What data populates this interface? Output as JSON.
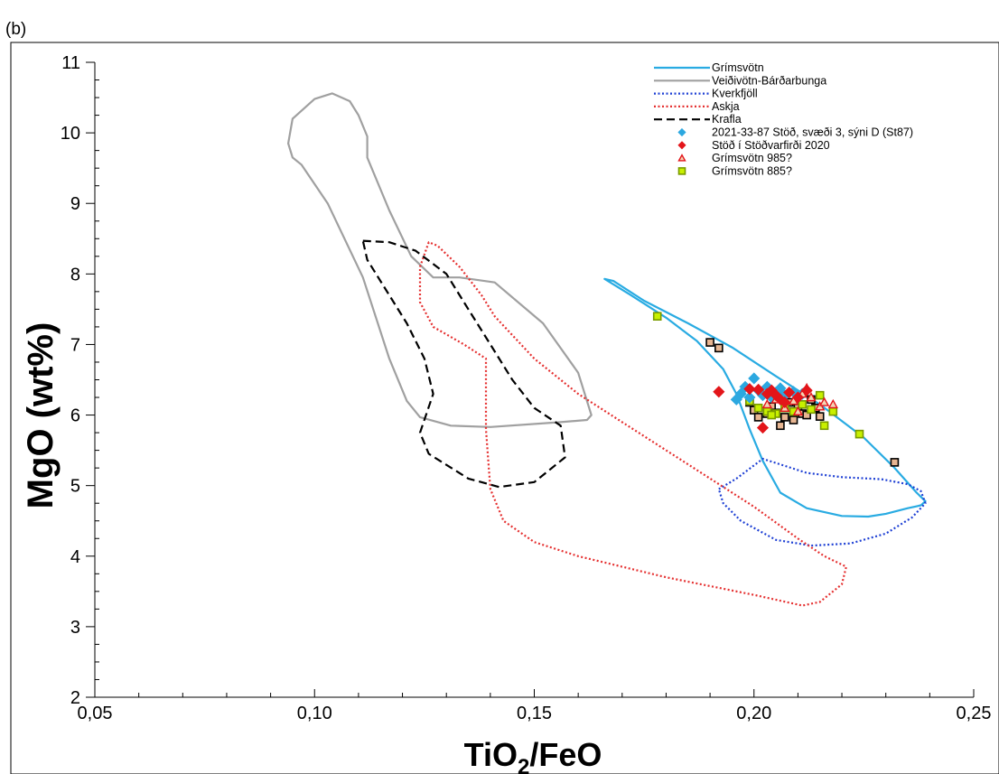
{
  "panel_label": "(b)",
  "chart_data": {
    "type": "scatter",
    "xlabel_main": "TiO",
    "xlabel_sub": "2",
    "xlabel_tail": "/FeO",
    "ylabel": "MgO (wt%)",
    "xlim": [
      0.05,
      0.25
    ],
    "ylim": [
      2,
      11
    ],
    "x_ticks": [
      {
        "value": 0.05,
        "label": "0,05"
      },
      {
        "value": 0.1,
        "label": "0,10"
      },
      {
        "value": 0.15,
        "label": "0,15"
      },
      {
        "value": 0.2,
        "label": "0,20"
      },
      {
        "value": 0.25,
        "label": "0,25"
      }
    ],
    "y_ticks": [
      {
        "value": 2,
        "label": "2"
      },
      {
        "value": 3,
        "label": "3"
      },
      {
        "value": 4,
        "label": "4"
      },
      {
        "value": 5,
        "label": "5"
      },
      {
        "value": 6,
        "label": "6"
      },
      {
        "value": 7,
        "label": "7"
      },
      {
        "value": 8,
        "label": "8"
      },
      {
        "value": 9,
        "label": "9"
      },
      {
        "value": 10,
        "label": "10"
      },
      {
        "value": 11,
        "label": "11"
      }
    ],
    "grid": false,
    "legend_position": "top-right",
    "fields": [
      {
        "name": "Grímsvötn",
        "color": "#29abe2",
        "style": "solid",
        "points": [
          [
            0.166,
            7.93
          ],
          [
            0.168,
            7.9
          ],
          [
            0.175,
            7.62
          ],
          [
            0.185,
            7.3
          ],
          [
            0.195,
            6.96
          ],
          [
            0.205,
            6.55
          ],
          [
            0.215,
            6.15
          ],
          [
            0.225,
            5.68
          ],
          [
            0.232,
            5.25
          ],
          [
            0.237,
            4.9
          ],
          [
            0.239,
            4.78
          ],
          [
            0.238,
            4.72
          ],
          [
            0.235,
            4.68
          ],
          [
            0.23,
            4.6
          ],
          [
            0.226,
            4.56
          ],
          [
            0.22,
            4.57
          ],
          [
            0.212,
            4.68
          ],
          [
            0.206,
            4.9
          ],
          [
            0.202,
            5.35
          ],
          [
            0.199,
            5.8
          ],
          [
            0.196,
            6.3
          ],
          [
            0.193,
            6.65
          ],
          [
            0.187,
            7.05
          ],
          [
            0.18,
            7.38
          ],
          [
            0.172,
            7.7
          ],
          [
            0.166,
            7.93
          ]
        ]
      },
      {
        "name": "Veiðivötn-Bárðarbunga",
        "color": "#a0a0a0",
        "style": "solid",
        "points": [
          [
            0.095,
            10.2
          ],
          [
            0.1,
            10.48
          ],
          [
            0.104,
            10.56
          ],
          [
            0.108,
            10.45
          ],
          [
            0.11,
            10.25
          ],
          [
            0.112,
            9.95
          ],
          [
            0.112,
            9.65
          ],
          [
            0.117,
            8.9
          ],
          [
            0.122,
            8.25
          ],
          [
            0.127,
            7.95
          ],
          [
            0.133,
            7.95
          ],
          [
            0.141,
            7.88
          ],
          [
            0.152,
            7.3
          ],
          [
            0.16,
            6.6
          ],
          [
            0.163,
            6.0
          ],
          [
            0.162,
            5.93
          ],
          [
            0.156,
            5.9
          ],
          [
            0.14,
            5.83
          ],
          [
            0.131,
            5.85
          ],
          [
            0.124,
            5.97
          ],
          [
            0.121,
            6.2
          ],
          [
            0.117,
            6.8
          ],
          [
            0.111,
            7.95
          ],
          [
            0.103,
            9.0
          ],
          [
            0.097,
            9.55
          ],
          [
            0.095,
            9.65
          ],
          [
            0.094,
            9.85
          ],
          [
            0.095,
            10.2
          ]
        ]
      },
      {
        "name": "Kverkfjöll",
        "color": "#1d3fd4",
        "style": "dotted",
        "points": [
          [
            0.192,
            4.95
          ],
          [
            0.196,
            5.1
          ],
          [
            0.202,
            5.38
          ],
          [
            0.206,
            5.3
          ],
          [
            0.212,
            5.18
          ],
          [
            0.22,
            5.12
          ],
          [
            0.229,
            5.09
          ],
          [
            0.235,
            5.02
          ],
          [
            0.238,
            4.92
          ],
          [
            0.239,
            4.75
          ],
          [
            0.236,
            4.55
          ],
          [
            0.23,
            4.32
          ],
          [
            0.222,
            4.18
          ],
          [
            0.213,
            4.15
          ],
          [
            0.205,
            4.23
          ],
          [
            0.197,
            4.5
          ],
          [
            0.193,
            4.75
          ],
          [
            0.192,
            4.95
          ]
        ]
      },
      {
        "name": "Askja",
        "color": "#e53030",
        "style": "dotted",
        "points": [
          [
            0.124,
            8.1
          ],
          [
            0.126,
            8.45
          ],
          [
            0.128,
            8.4
          ],
          [
            0.133,
            8.1
          ],
          [
            0.138,
            7.7
          ],
          [
            0.141,
            7.4
          ],
          [
            0.15,
            6.8
          ],
          [
            0.16,
            6.3
          ],
          [
            0.17,
            5.9
          ],
          [
            0.185,
            5.3
          ],
          [
            0.2,
            4.7
          ],
          [
            0.21,
            4.25
          ],
          [
            0.216,
            4.0
          ],
          [
            0.221,
            3.85
          ],
          [
            0.22,
            3.6
          ],
          [
            0.215,
            3.35
          ],
          [
            0.211,
            3.3
          ],
          [
            0.2,
            3.45
          ],
          [
            0.18,
            3.7
          ],
          [
            0.16,
            4.0
          ],
          [
            0.15,
            4.2
          ],
          [
            0.143,
            4.5
          ],
          [
            0.14,
            4.95
          ],
          [
            0.139,
            5.8
          ],
          [
            0.139,
            6.8
          ],
          [
            0.134,
            7.0
          ],
          [
            0.127,
            7.25
          ],
          [
            0.124,
            7.6
          ],
          [
            0.124,
            8.1
          ]
        ]
      },
      {
        "name": "Krafla",
        "color": "#000000",
        "style": "dashed",
        "points": [
          [
            0.111,
            8.47
          ],
          [
            0.117,
            8.45
          ],
          [
            0.123,
            8.33
          ],
          [
            0.13,
            8.0
          ],
          [
            0.135,
            7.5
          ],
          [
            0.14,
            7.0
          ],
          [
            0.145,
            6.5
          ],
          [
            0.15,
            6.1
          ],
          [
            0.156,
            5.85
          ],
          [
            0.157,
            5.4
          ],
          [
            0.15,
            5.05
          ],
          [
            0.142,
            4.98
          ],
          [
            0.135,
            5.1
          ],
          [
            0.126,
            5.45
          ],
          [
            0.124,
            5.75
          ],
          [
            0.127,
            6.3
          ],
          [
            0.125,
            6.8
          ],
          [
            0.121,
            7.3
          ],
          [
            0.116,
            7.8
          ],
          [
            0.112,
            8.2
          ],
          [
            0.111,
            8.47
          ]
        ]
      }
    ],
    "series": [
      {
        "name": "2021-33-87 Stöð, svæði 3, sýni D (St87)",
        "marker": "diamond",
        "color": "#2ca8e0",
        "points": [
          [
            0.2,
            6.52
          ],
          [
            0.197,
            6.3
          ],
          [
            0.199,
            6.25
          ],
          [
            0.201,
            6.35
          ],
          [
            0.203,
            6.4
          ],
          [
            0.204,
            6.25
          ],
          [
            0.206,
            6.38
          ],
          [
            0.207,
            6.28
          ],
          [
            0.209,
            6.33
          ],
          [
            0.21,
            6.25
          ],
          [
            0.198,
            6.4
          ],
          [
            0.202,
            6.28
          ],
          [
            0.205,
            6.32
          ],
          [
            0.211,
            6.3
          ],
          [
            0.196,
            6.22
          ]
        ]
      },
      {
        "name": "Stöð í Stöðvarfirði 2020",
        "marker": "diamond",
        "color": "#e3151a",
        "points": [
          [
            0.192,
            6.33
          ],
          [
            0.199,
            6.37
          ],
          [
            0.201,
            6.36
          ],
          [
            0.202,
            5.82
          ],
          [
            0.203,
            6.3
          ],
          [
            0.204,
            6.35
          ],
          [
            0.205,
            6.28
          ],
          [
            0.206,
            6.22
          ],
          [
            0.207,
            6.18
          ],
          [
            0.208,
            6.32
          ],
          [
            0.21,
            6.25
          ],
          [
            0.212,
            6.35
          ]
        ]
      },
      {
        "name": "Grímsvötn 985?",
        "marker": "triangle",
        "color": "#f3d5b5",
        "stroke": "#e3151a",
        "points": [
          [
            0.203,
            6.15
          ],
          [
            0.205,
            6.22
          ],
          [
            0.207,
            6.1
          ],
          [
            0.209,
            6.2
          ],
          [
            0.211,
            6.3
          ],
          [
            0.212,
            6.38
          ],
          [
            0.213,
            6.25
          ],
          [
            0.215,
            6.12
          ],
          [
            0.216,
            6.18
          ],
          [
            0.218,
            6.15
          ],
          [
            0.21,
            6.05
          ]
        ]
      },
      {
        "name": "Grímsvötn 885?",
        "marker": "square",
        "color": "#c8f000",
        "stroke": "#7a9a00",
        "points": [
          [
            0.178,
            7.4
          ],
          [
            0.199,
            6.2
          ],
          [
            0.201,
            6.1
          ],
          [
            0.203,
            6.05
          ],
          [
            0.205,
            6.02
          ],
          [
            0.207,
            6.1
          ],
          [
            0.209,
            6.05
          ],
          [
            0.211,
            6.15
          ],
          [
            0.213,
            6.08
          ],
          [
            0.215,
            6.28
          ],
          [
            0.216,
            5.85
          ],
          [
            0.218,
            6.05
          ],
          [
            0.224,
            5.73
          ],
          [
            0.204,
            6.0
          ]
        ]
      },
      {
        "name": "",
        "marker": "square",
        "color": "#e8b692",
        "stroke": "#000000",
        "in_legend": false,
        "points": [
          [
            0.19,
            7.03
          ],
          [
            0.192,
            6.95
          ],
          [
            0.199,
            6.18
          ],
          [
            0.2,
            6.07
          ],
          [
            0.201,
            5.97
          ],
          [
            0.203,
            6.02
          ],
          [
            0.204,
            6.12
          ],
          [
            0.205,
            6.03
          ],
          [
            0.206,
            5.85
          ],
          [
            0.207,
            5.97
          ],
          [
            0.208,
            6.18
          ],
          [
            0.209,
            5.93
          ],
          [
            0.21,
            6.1
          ],
          [
            0.211,
            6.02
          ],
          [
            0.212,
            6.0
          ],
          [
            0.213,
            6.22
          ],
          [
            0.215,
            5.98
          ],
          [
            0.214,
            6.1
          ],
          [
            0.232,
            5.33
          ]
        ]
      }
    ]
  }
}
